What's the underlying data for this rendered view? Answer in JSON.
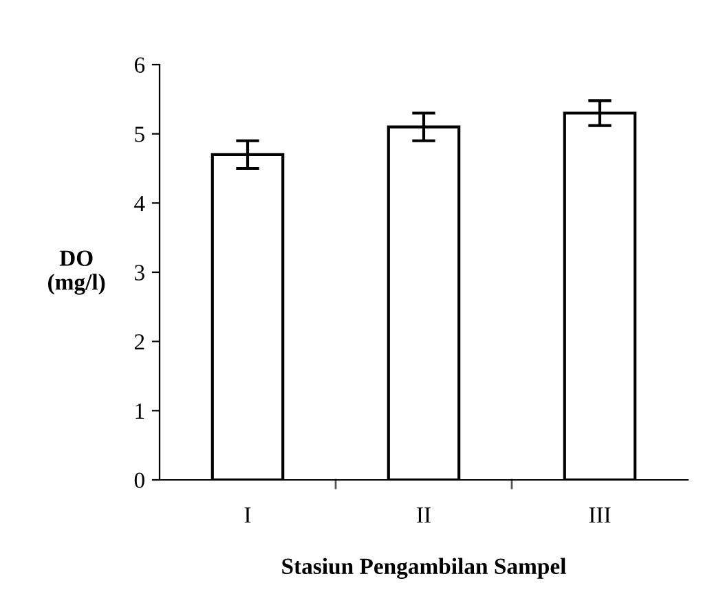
{
  "chart_data": {
    "type": "bar",
    "xlabel": "Stasiun Pengambilan Sampel",
    "ylabel": "DO\n(mg/l)",
    "categories": [
      "I",
      "II",
      "III"
    ],
    "values": [
      4.7,
      5.1,
      5.3
    ],
    "errors": [
      0.2,
      0.2,
      0.18
    ],
    "color": "#ffffff",
    "ylim": [
      0,
      6
    ],
    "yticks": [
      0,
      1,
      2,
      3,
      4,
      5,
      6
    ],
    "grid": false,
    "legend": false
  }
}
